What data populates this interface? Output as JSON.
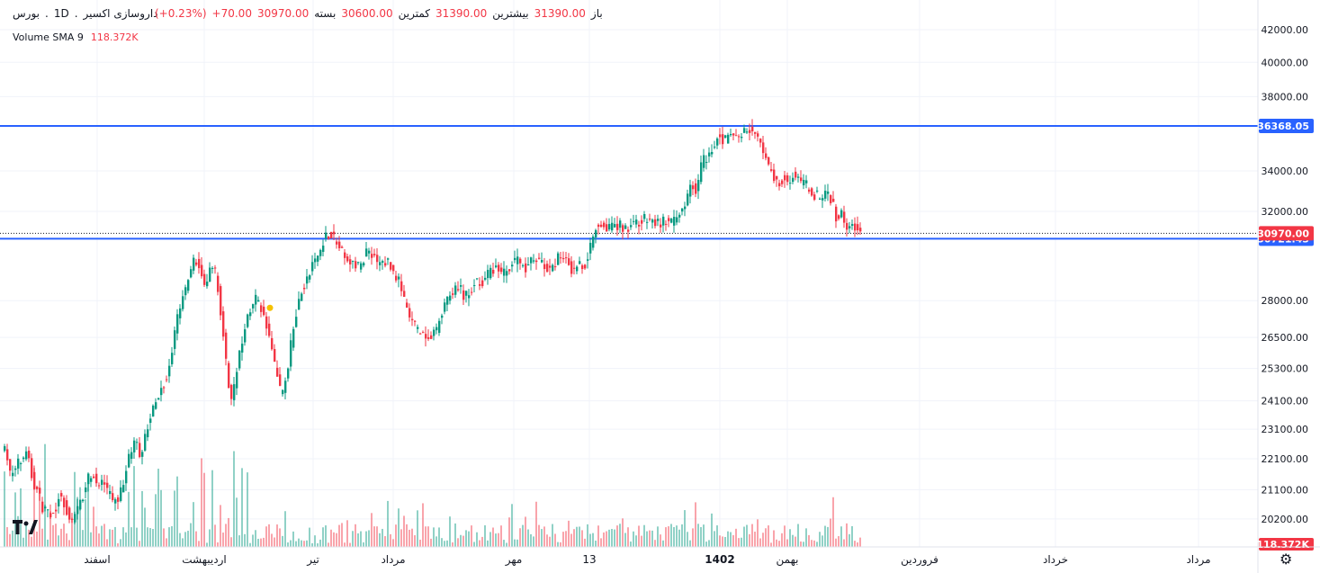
{
  "header": {
    "symbol": "داروسازی اکسیر",
    "exchange": "بورس",
    "interval": "1D",
    "open_label": "باز",
    "open_value": "31390.00",
    "high_label": "بیشترین",
    "high_value": "31390.00",
    "low_label": "کمترین",
    "low_value": "30600.00",
    "close_label": "بسته",
    "close_value": "30970.00",
    "change": "+70.00",
    "change_pct": "(+0.23%)"
  },
  "volume_indicator": {
    "label": "Volume SMA 9",
    "value": "118.372K"
  },
  "chart_data": {
    "type": "candlestick",
    "y_scale": "log",
    "ylim": [
      19300,
      43000
    ],
    "y_ticks": [
      "42000.00",
      "40000.00",
      "38000.00",
      "34000.00",
      "32000.00",
      "28000.00",
      "26500.00",
      "25300.00",
      "24100.00",
      "23100.00",
      "22100.00",
      "21100.00",
      "20200.00"
    ],
    "x_tick_labels": [
      "اسفند",
      "اردیبهشت",
      "تیر",
      "مرداد",
      "مهر",
      "13",
      "1402",
      "بهمن",
      "فروردین",
      "خرداد",
      "مرداد"
    ],
    "horizontal_lines": [
      {
        "value": 36368.05,
        "label": "36368.05",
        "color": "#2962ff"
      },
      {
        "value": 30721.43,
        "label": "30721.43",
        "color": "#2962ff"
      }
    ],
    "last_price": {
      "value": 30970.0,
      "label": "30970.00",
      "color": "#f23645"
    },
    "volume_last_label": "118.372K",
    "up_color": "#089981",
    "down_color": "#f23645",
    "close_path": [
      [
        0,
        22600
      ],
      [
        6,
        22300
      ],
      [
        12,
        21500
      ],
      [
        18,
        21900
      ],
      [
        24,
        22000
      ],
      [
        30,
        22400
      ],
      [
        36,
        21400
      ],
      [
        42,
        21000
      ],
      [
        48,
        20500
      ],
      [
        54,
        20300
      ],
      [
        60,
        20400
      ],
      [
        66,
        21000
      ],
      [
        72,
        20600
      ],
      [
        78,
        20100
      ],
      [
        84,
        20300
      ],
      [
        90,
        20700
      ],
      [
        96,
        21300
      ],
      [
        102,
        21700
      ],
      [
        108,
        21100
      ],
      [
        114,
        21400
      ],
      [
        120,
        21000
      ],
      [
        126,
        20700
      ],
      [
        132,
        20900
      ],
      [
        138,
        21500
      ],
      [
        144,
        22300
      ],
      [
        150,
        22700
      ],
      [
        156,
        22200
      ],
      [
        162,
        23100
      ],
      [
        168,
        23600
      ],
      [
        174,
        24200
      ],
      [
        180,
        24700
      ],
      [
        186,
        25000
      ],
      [
        192,
        26200
      ],
      [
        198,
        27500
      ],
      [
        204,
        28200
      ],
      [
        210,
        29200
      ],
      [
        216,
        29900
      ],
      [
        222,
        29300
      ],
      [
        228,
        28400
      ],
      [
        234,
        29500
      ],
      [
        240,
        29100
      ],
      [
        246,
        27300
      ],
      [
        252,
        25100
      ],
      [
        258,
        24100
      ],
      [
        264,
        25500
      ],
      [
        270,
        26600
      ],
      [
        276,
        27500
      ],
      [
        282,
        28100
      ],
      [
        288,
        27900
      ],
      [
        294,
        27200
      ],
      [
        300,
        26300
      ],
      [
        306,
        25300
      ],
      [
        312,
        24300
      ],
      [
        318,
        25000
      ],
      [
        324,
        26400
      ],
      [
        330,
        27800
      ],
      [
        336,
        28500
      ],
      [
        342,
        29000
      ],
      [
        348,
        29600
      ],
      [
        354,
        30000
      ],
      [
        360,
        30800
      ],
      [
        366,
        31000
      ],
      [
        372,
        30700
      ],
      [
        378,
        30200
      ],
      [
        384,
        29700
      ],
      [
        390,
        29800
      ],
      [
        396,
        29400
      ],
      [
        402,
        29600
      ],
      [
        408,
        30300
      ],
      [
        414,
        30000
      ],
      [
        420,
        29500
      ],
      [
        426,
        29700
      ],
      [
        432,
        29700
      ],
      [
        438,
        29100
      ],
      [
        444,
        28800
      ],
      [
        450,
        27800
      ],
      [
        456,
        27200
      ],
      [
        462,
        26900
      ],
      [
        468,
        26600
      ],
      [
        474,
        26400
      ],
      [
        480,
        26500
      ],
      [
        486,
        26900
      ],
      [
        492,
        27700
      ],
      [
        498,
        28100
      ],
      [
        504,
        28300
      ],
      [
        510,
        28600
      ],
      [
        516,
        28100
      ],
      [
        522,
        28300
      ],
      [
        528,
        28900
      ],
      [
        534,
        28800
      ],
      [
        540,
        29000
      ],
      [
        546,
        29300
      ],
      [
        552,
        29500
      ],
      [
        558,
        29100
      ],
      [
        564,
        29400
      ],
      [
        570,
        29700
      ],
      [
        576,
        29800
      ],
      [
        582,
        29400
      ],
      [
        588,
        29600
      ],
      [
        594,
        29900
      ],
      [
        600,
        29700
      ],
      [
        606,
        29400
      ],
      [
        612,
        29200
      ],
      [
        618,
        29700
      ],
      [
        624,
        30000
      ],
      [
        630,
        29900
      ],
      [
        636,
        29200
      ],
      [
        642,
        29700
      ],
      [
        648,
        29400
      ],
      [
        654,
        30100
      ],
      [
        660,
        31100
      ],
      [
        666,
        31500
      ],
      [
        672,
        31400
      ],
      [
        678,
        31200
      ],
      [
        684,
        31300
      ],
      [
        690,
        31300
      ],
      [
        696,
        31200
      ],
      [
        702,
        31500
      ],
      [
        708,
        31400
      ],
      [
        714,
        31600
      ],
      [
        720,
        31600
      ],
      [
        726,
        31500
      ],
      [
        732,
        31400
      ],
      [
        738,
        31600
      ],
      [
        744,
        31400
      ],
      [
        750,
        31500
      ],
      [
        756,
        31900
      ],
      [
        762,
        32600
      ],
      [
        768,
        33300
      ],
      [
        774,
        33100
      ],
      [
        780,
        34600
      ],
      [
        786,
        34700
      ],
      [
        792,
        35300
      ],
      [
        798,
        35900
      ],
      [
        804,
        35600
      ],
      [
        810,
        35700
      ],
      [
        816,
        35900
      ],
      [
        822,
        35800
      ],
      [
        828,
        36100
      ],
      [
        834,
        36200
      ],
      [
        840,
        35800
      ],
      [
        846,
        35200
      ],
      [
        852,
        34400
      ],
      [
        858,
        33800
      ],
      [
        864,
        33300
      ],
      [
        870,
        33700
      ],
      [
        876,
        33500
      ],
      [
        882,
        33900
      ],
      [
        888,
        33400
      ],
      [
        894,
        33300
      ],
      [
        900,
        33100
      ],
      [
        906,
        32800
      ],
      [
        912,
        32600
      ],
      [
        918,
        33100
      ],
      [
        924,
        32500
      ],
      [
        930,
        31600
      ],
      [
        936,
        31900
      ],
      [
        942,
        31100
      ],
      [
        948,
        31400
      ],
      [
        954,
        31000
      ],
      [
        958,
        30970
      ]
    ]
  }
}
